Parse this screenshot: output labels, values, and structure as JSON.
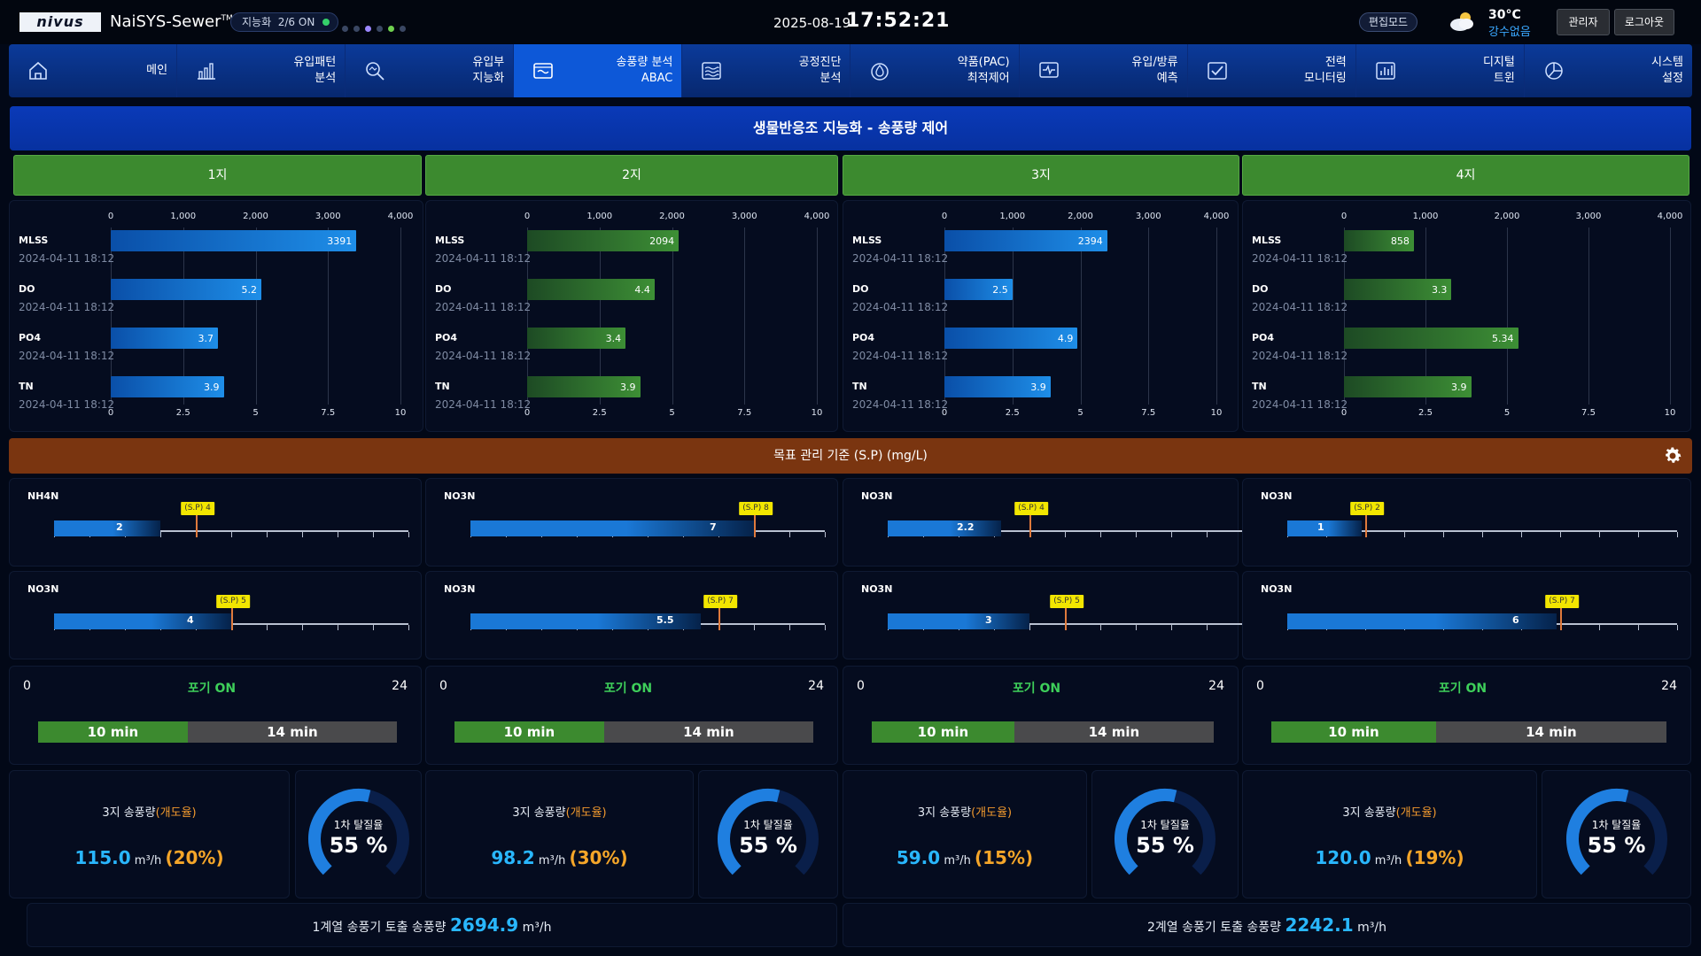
{
  "header": {
    "logo": "nivus",
    "app_name": "NaiSYS-Sewer",
    "app_tm": "TM",
    "ai_status": "지능화  2/6 ON",
    "date": "2025-08-19",
    "time": "17:52:21",
    "edit_mode": "편집모드",
    "temperature": "30°C",
    "weather": "강수없음",
    "admin": "관리자",
    "logout": "로그아웃"
  },
  "nav": [
    {
      "label": "메인",
      "icon": "home-icon"
    },
    {
      "label": "유입패턴\n분석",
      "icon": "bar-chart-icon"
    },
    {
      "label": "유입부\n지능화",
      "icon": "magnify-icon"
    },
    {
      "label": "송풍량 분석\nABAC",
      "icon": "tank-icon",
      "active": true
    },
    {
      "label": "공정진단\n분석",
      "icon": "wave-icon"
    },
    {
      "label": "약품(PAC)\n최적제어",
      "icon": "drop-icon"
    },
    {
      "label": "유입/방류\n예측",
      "icon": "monitor-pulse-icon"
    },
    {
      "label": "전력\n모니터링",
      "icon": "checklist-icon"
    },
    {
      "label": "디지털\n트윈",
      "icon": "chart-box-icon"
    },
    {
      "label": "시스템\n설정",
      "icon": "pie-icon"
    }
  ],
  "section_title": "생물반응조 지능화 - 송풍량 제어",
  "tanks": [
    "1지",
    "2지",
    "3지",
    "4지"
  ],
  "chart_axes": {
    "top_ticks": [
      "0",
      "1,000",
      "2,000",
      "3,000",
      "4,000"
    ],
    "bottom_ticks": [
      "0",
      "2.5",
      "5",
      "7.5",
      "10"
    ],
    "top_range": [
      0,
      4000
    ],
    "bottom_range": [
      0,
      10
    ]
  },
  "chart_data": [
    {
      "type": "bar",
      "color": "blue",
      "categories": [
        "MLSS",
        "DO",
        "PO4",
        "TN"
      ],
      "dates": [
        "2024-04-11 18:12",
        "2024-04-11 18:12",
        "2024-04-11 18:12",
        "2024-04-11 18:12"
      ],
      "values": [
        3391,
        5.2,
        3.7,
        3.9
      ],
      "labels": [
        "3391",
        "5.2",
        "3.7",
        "3.9"
      ]
    },
    {
      "type": "bar",
      "color": "green",
      "categories": [
        "MLSS",
        "DO",
        "PO4",
        "TN"
      ],
      "dates": [
        "2024-04-11 18:12",
        "2024-04-11 18:12",
        "2024-04-11 18:12",
        "2024-04-11 18:12"
      ],
      "values": [
        2094,
        4.4,
        3.4,
        3.9
      ],
      "labels": [
        "2094",
        "4.4",
        "3.4",
        "3.9"
      ]
    },
    {
      "type": "bar",
      "color": "blue",
      "categories": [
        "MLSS",
        "DO",
        "PO4",
        "TN"
      ],
      "dates": [
        "2024-04-11 18:12",
        "2024-04-11 18:12",
        "2024-04-11 18:12",
        "2024-04-11 18:12"
      ],
      "values": [
        2394,
        2.5,
        4.9,
        3.9
      ],
      "labels": [
        "2394",
        "2.5",
        "4.9",
        "3.9"
      ]
    },
    {
      "type": "bar",
      "color": "green",
      "categories": [
        "MLSS",
        "DO",
        "PO4",
        "TN"
      ],
      "dates": [
        "2024-04-11 18:12",
        "2024-04-11 18:12",
        "2024-04-11 18:12",
        "2024-04-11 18:12"
      ],
      "values": [
        858,
        3.3,
        5.34,
        3.9
      ],
      "labels": [
        "858",
        "3.3",
        "5.34",
        "3.9"
      ]
    }
  ],
  "setpoint_title": "목표 관리 기준 (S.P) (mg/L)",
  "setpoints": [
    [
      {
        "name": "NH4N",
        "value": 2,
        "value_label": "2",
        "sp": 4,
        "sp_label": "(S.P) 4"
      },
      {
        "name": "NO3N",
        "value": 4,
        "value_label": "4",
        "sp": 5,
        "sp_label": "(S.P) 5"
      }
    ],
    [
      {
        "name": "NO3N",
        "value": 7,
        "value_label": "7",
        "sp": 8,
        "sp_label": "(S.P) 8"
      },
      {
        "name": "NO3N",
        "value": 5.5,
        "value_label": "5.5",
        "sp": 7,
        "sp_label": "(S.P) 7"
      }
    ],
    [
      {
        "name": "NO3N",
        "value": 2.2,
        "value_label": "2.2",
        "sp": 4,
        "sp_label": "(S.P) 4"
      },
      {
        "name": "NO3N",
        "value": 3,
        "value_label": "3",
        "sp": 5,
        "sp_label": "(S.P) 5"
      }
    ],
    [
      {
        "name": "NO3N",
        "value": 1,
        "value_label": "1",
        "sp": 2,
        "sp_label": "(S.P) 2"
      },
      {
        "name": "NO3N",
        "value": 6,
        "value_label": "6",
        "sp": 7,
        "sp_label": "(S.P) 7"
      }
    ]
  ],
  "aeration": [
    {
      "start": "0",
      "end": "24",
      "state": "포기 ON",
      "on_label": "10 min",
      "off_label": "14 min",
      "on_min": 10,
      "off_min": 14
    },
    {
      "start": "0",
      "end": "24",
      "state": "포기 ON",
      "on_label": "10 min",
      "off_label": "14 min",
      "on_min": 10,
      "off_min": 14
    },
    {
      "start": "0",
      "end": "24",
      "state": "포기 ON",
      "on_label": "10 min",
      "off_label": "14 min",
      "on_min": 10,
      "off_min": 14
    },
    {
      "start": "0",
      "end": "24",
      "state": "포기 ON",
      "on_label": "10 min",
      "off_label": "14 min",
      "on_min": 10,
      "off_min": 14
    }
  ],
  "blowers": [
    {
      "title": "3지 송풍량",
      "open": "(개도율)",
      "flow": "115.0",
      "unit": "m³/h",
      "pct": "(20%)"
    },
    {
      "title": "3지 송풍량",
      "open": "(개도율)",
      "flow": "98.2",
      "unit": "m³/h",
      "pct": "(30%)"
    },
    {
      "title": "3지 송풍량",
      "open": "(개도율)",
      "flow": "59.0",
      "unit": "m³/h",
      "pct": "(15%)"
    },
    {
      "title": "3지 송풍량",
      "open": "(개도율)",
      "flow": "120.0",
      "unit": "m³/h",
      "pct": "(19%)"
    }
  ],
  "donuts": [
    {
      "label": "1차 탈질율",
      "value_text": "55 %",
      "value": 55
    },
    {
      "label": "1차 탈질율",
      "value_text": "55 %",
      "value": 55
    },
    {
      "label": "1차 탈질율",
      "value_text": "55 %",
      "value": 55
    },
    {
      "label": "1차 탈질율",
      "value_text": "55 %",
      "value": 55
    }
  ],
  "totals": [
    {
      "label": "1계열 송풍기 토출 송풍량",
      "value": "2694.9",
      "unit": "m³/h"
    },
    {
      "label": "2계열 송풍기 토출 송풍량",
      "value": "2242.1",
      "unit": "m³/h"
    }
  ],
  "colors": {
    "accent_blue": "#1e8ee8",
    "accent_green": "#3c8a2f",
    "setpoint_header": "#7a3510",
    "sp_badge": "#f2e600",
    "flow_value": "#29b7ff",
    "pct_value": "#f5a629"
  }
}
